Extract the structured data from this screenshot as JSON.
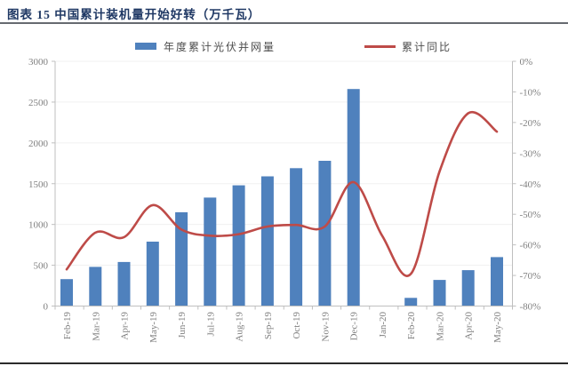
{
  "page": {
    "title": "图表 15 中国累计装机量开始好转（万千瓦）"
  },
  "legend": {
    "bar_label": "年度累计光伏并网量",
    "line_label": "累计同比"
  },
  "colors": {
    "bar": "#4F81BD",
    "line": "#BE4B48",
    "title_text": "#1F3864",
    "axis_line": "#BFBFBF",
    "axis_text": "#7F7F7F",
    "gridline": "#F0F0F0",
    "legend_text": "#4D4D4D",
    "top_divider": "#666A70",
    "bottom_divider": "#2B2B2B"
  },
  "chart_data": {
    "type": "bar",
    "subtype": "bar-line-combo",
    "title": "中国累计装机量开始好转（万千瓦）",
    "legend_position": "top",
    "grid": "faint horizontal",
    "categories": [
      "Feb-19",
      "Mar-19",
      "Apr-19",
      "May-19",
      "Jun-19",
      "Jul-19",
      "Aug-19",
      "Sep-19",
      "Oct-19",
      "Nov-19",
      "Dec-19",
      "Jan-20",
      "Feb-20",
      "Mar-20",
      "Apr-20",
      "May-20"
    ],
    "series": [
      {
        "name": "年度累计光伏并网量",
        "chart": "bar",
        "axis": "left",
        "unit": "万千瓦",
        "values": [
          330,
          480,
          540,
          790,
          1150,
          1330,
          1480,
          1590,
          1690,
          1780,
          2660,
          null,
          100,
          320,
          440,
          600
        ]
      },
      {
        "name": "累计同比",
        "chart": "line",
        "axis": "right",
        "unit": "%",
        "values": [
          -68,
          -56,
          -57.5,
          -47,
          -55,
          -57,
          -56.5,
          -54,
          -53.5,
          -54,
          -39.5,
          -57,
          -69.5,
          -36,
          -17,
          -23
        ]
      }
    ],
    "left_axis": {
      "min": 0,
      "max": 3000,
      "step": 500,
      "tick_labels": [
        "3000",
        "2500",
        "2000",
        "1500",
        "1000",
        "500",
        "0"
      ]
    },
    "right_axis": {
      "min": -80,
      "max": 0,
      "step": 10,
      "tick_labels": [
        "0%",
        "-10%",
        "-20%",
        "-30%",
        "-40%",
        "-50%",
        "-60%",
        "-70%",
        "-80%"
      ]
    }
  }
}
